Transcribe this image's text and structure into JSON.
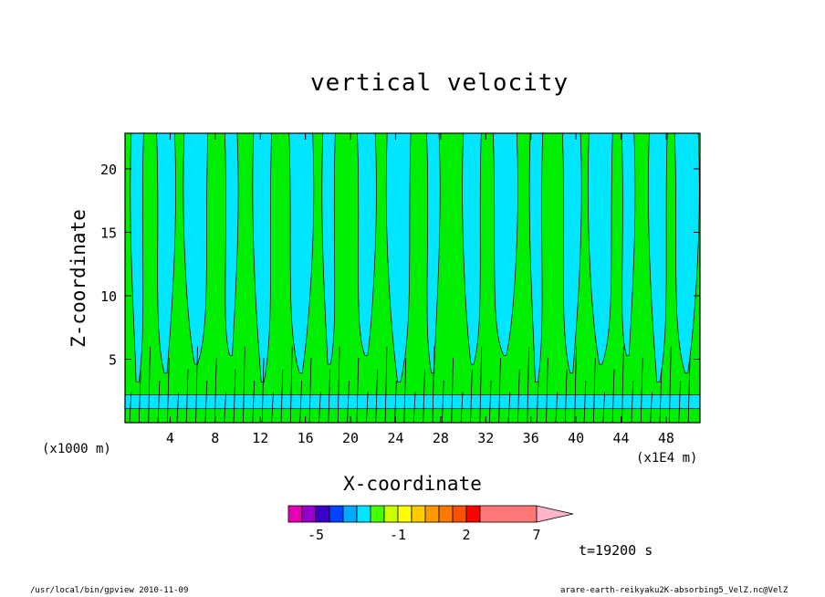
{
  "chart_data": {
    "type": "heatmap",
    "title": "vertical velocity",
    "xlabel": "X-coordinate",
    "ylabel": "Z-coordinate",
    "x_unit_note": "(x1E4 m)",
    "y_unit_note": "(x1000 m)",
    "x_ticks": [
      "4",
      "8",
      "12",
      "16",
      "20",
      "24",
      "28",
      "32",
      "36",
      "40",
      "44",
      "48"
    ],
    "x_tick_values": [
      4,
      8,
      12,
      16,
      20,
      24,
      28,
      32,
      36,
      40,
      44,
      48
    ],
    "y_ticks": [
      "5",
      "10",
      "15",
      "20"
    ],
    "y_tick_values": [
      5,
      10,
      15,
      20
    ],
    "xlim": [
      0,
      51
    ],
    "ylim": [
      0,
      22.8
    ],
    "colorbar": {
      "levels": [
        -7,
        -6,
        -5,
        -4,
        -3,
        -2.5,
        -2,
        -1.5,
        -1,
        -0.5,
        0,
        0.5,
        1,
        2,
        3,
        4,
        5,
        6,
        7,
        11
      ],
      "colors": [
        "#e600b4",
        "#9600c8",
        "#3c00c8",
        "#0044ff",
        "#00aaff",
        "#00e6ff",
        "#44ff00",
        "#ccff00",
        "#ffff00",
        "#ffcc00",
        "#ff9900",
        "#ff7800",
        "#ff5000",
        "#ff0000",
        "#ff7878"
      ],
      "labels": [
        "-5",
        "-1",
        "2",
        "7"
      ],
      "label_values": [
        -5,
        -1,
        2,
        7
      ]
    },
    "field_colors": {
      "upward": "#00ee00",
      "downward": "#00e6ff",
      "contour": "#000000"
    },
    "time_label": "t=19200 s"
  },
  "footer": {
    "left": "/usr/local/bin/gpview   2010-11-09",
    "right": "arare-earth-reikyaku2K-absorbing5_VelZ.nc@VelZ"
  }
}
